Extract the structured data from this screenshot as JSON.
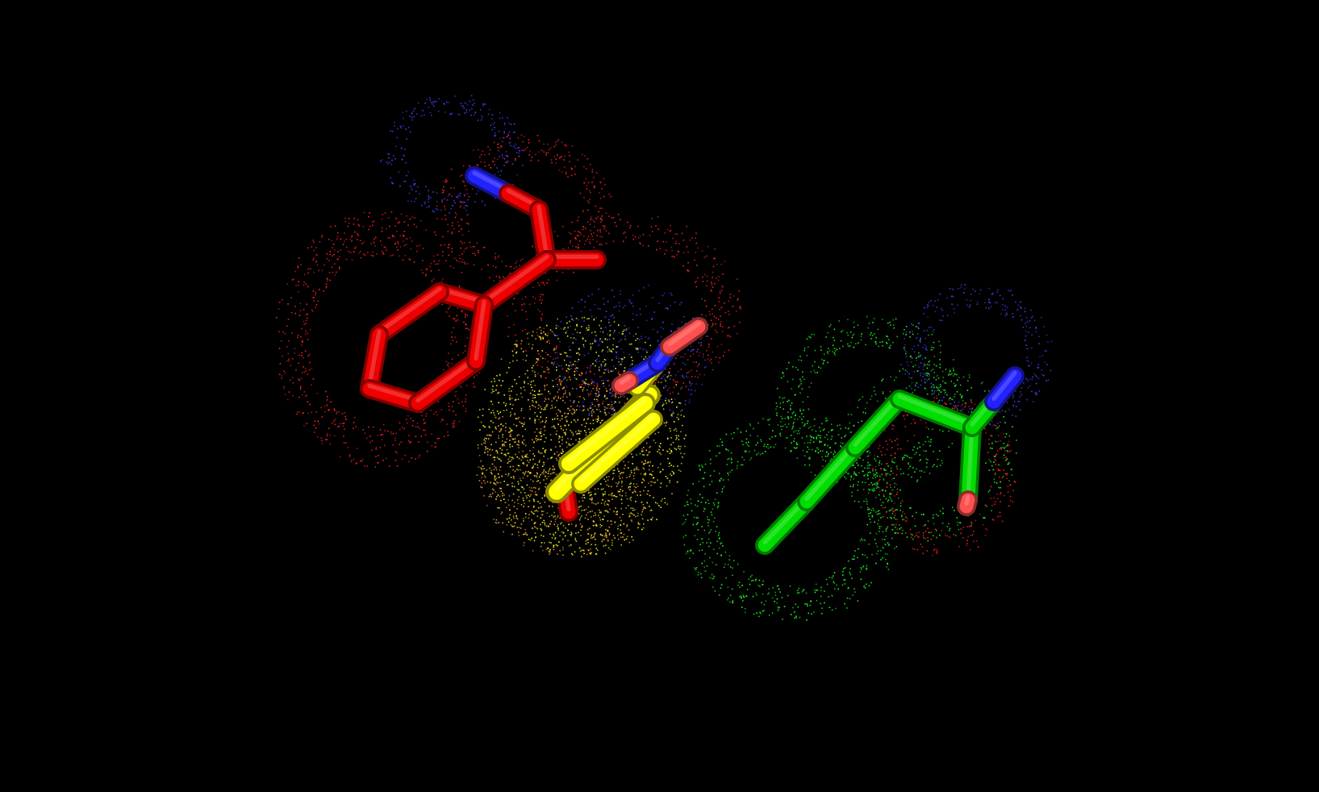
{
  "scene": {
    "background": "#000000",
    "render_style": "sticks",
    "surface_style": "dots",
    "colors": {
      "carbon_red": "#ee0000",
      "carbon_yellow": "#ffff00",
      "carbon_green": "#00dd00",
      "nitrogen": "#2222ff",
      "oxygen": "#ff5050",
      "dot_red": "#ff2222",
      "dot_blue": "#4444ff",
      "dot_yellow": "#ffff22",
      "dot_orange": "#ffaa33",
      "dot_green": "#22ff22"
    },
    "residues": [
      {
        "id": "residue-red",
        "element_colors": [
          "carbon_red",
          "nitrogen",
          "oxygen"
        ]
      },
      {
        "id": "residue-yellow",
        "element_colors": [
          "carbon_yellow",
          "nitrogen",
          "oxygen"
        ]
      },
      {
        "id": "residue-green",
        "element_colors": [
          "carbon_green",
          "nitrogen",
          "oxygen"
        ]
      }
    ]
  }
}
